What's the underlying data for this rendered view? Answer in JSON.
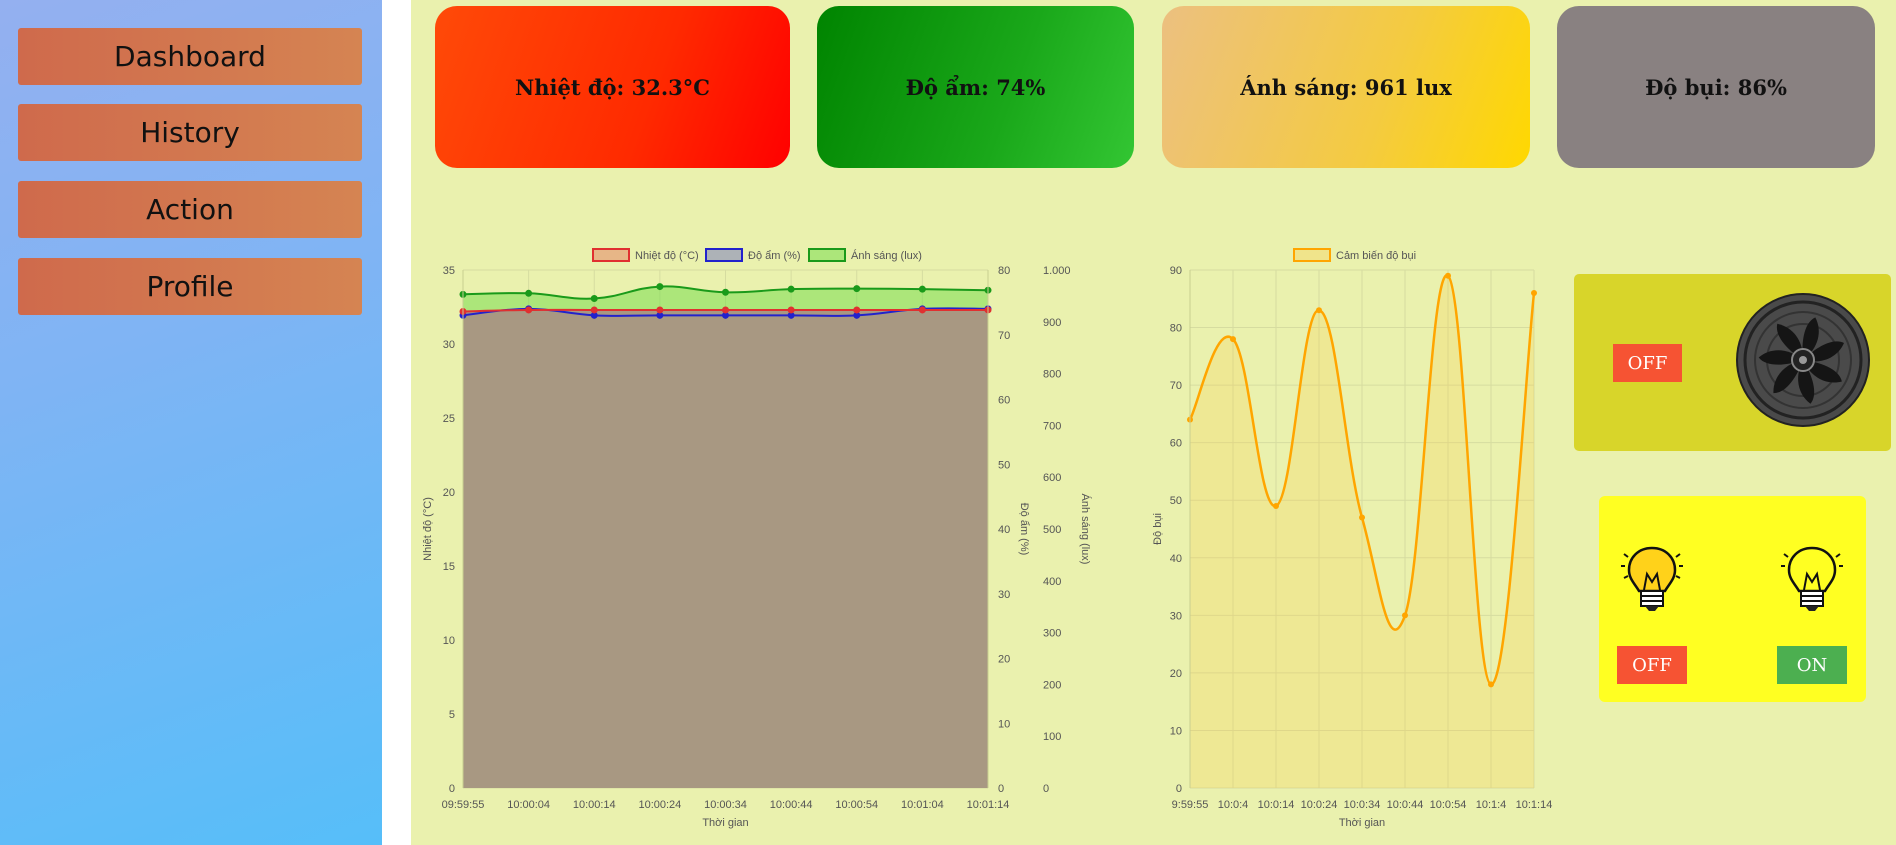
{
  "sidebar": {
    "items": [
      {
        "label": "Dashboard"
      },
      {
        "label": "History"
      },
      {
        "label": "Action"
      },
      {
        "label": "Profile"
      }
    ]
  },
  "cards": {
    "temperature": "Nhiệt độ: 32.3°C",
    "humidity": "Độ ẩm: 74%",
    "light": "Ánh sáng: 961 lux",
    "dust": "Độ bụi: 86%"
  },
  "colors": {
    "temperature_line": "#e03030",
    "humidity_line": "#2222cc",
    "light_line": "#1a9a1a",
    "dust_line": "#ffa500",
    "fill_brown": "#a89882",
    "btn_off": "#f65333",
    "btn_on": "#4caf50"
  },
  "controls": {
    "fan_icon": "fan-icon",
    "fan_button": "OFF",
    "bulb_icon": "light-bulb-icon",
    "light_left_button": "OFF",
    "light_right_button": "ON"
  },
  "chart_data": [
    {
      "type": "line",
      "categories": [
        "09:59:55",
        "10:00:04",
        "10:00:14",
        "10:00:24",
        "10:00:34",
        "10:00:44",
        "10:00:54",
        "10:01:04",
        "10:01:14"
      ],
      "series": [
        {
          "name": "Nhiệt độ (°C)",
          "axis": "left",
          "values": [
            32.2,
            32.3,
            32.3,
            32.3,
            32.3,
            32.3,
            32.3,
            32.3,
            32.3
          ]
        },
        {
          "name": "Độ ẩm (%)",
          "axis": "right1",
          "values": [
            73,
            74,
            73,
            73,
            73,
            73,
            73,
            74,
            74
          ]
        },
        {
          "name": "Ánh sáng (lux)",
          "axis": "right2",
          "values": [
            953,
            955,
            945,
            968,
            957,
            963,
            964,
            963,
            961
          ]
        }
      ],
      "xlabel": "Thời gian",
      "ylabel_left": "Nhiệt độ (°C)",
      "ylabel_right1": "Độ ẩm (%)",
      "ylabel_right2": "Ánh sáng (lux)",
      "ylim_left": [
        0,
        35
      ],
      "ylim_right1": [
        0,
        80
      ],
      "ylim_right2": [
        0,
        1000
      ],
      "ticks_left": [
        "0",
        "5",
        "10",
        "15",
        "20",
        "25",
        "30",
        "35"
      ],
      "ticks_right1": [
        "0",
        "10",
        "20",
        "30",
        "40",
        "50",
        "60",
        "70",
        "80"
      ],
      "ticks_right2": [
        "0",
        "100",
        "200",
        "300",
        "400",
        "500",
        "600",
        "700",
        "800",
        "900",
        "1.000"
      ],
      "legend": "top",
      "grid": true
    },
    {
      "type": "area",
      "categories": [
        "9:59:55",
        "10:0:4",
        "10:0:14",
        "10:0:24",
        "10:0:34",
        "10:0:44",
        "10:0:54",
        "10:1:4",
        "10:1:14"
      ],
      "series": [
        {
          "name": "Cảm biến độ bụi",
          "values": [
            64,
            78,
            49,
            83,
            47,
            30,
            89,
            18,
            86
          ]
        }
      ],
      "xlabel": "Thời gian",
      "ylabel": "Độ bụi",
      "ylim": [
        0,
        90
      ],
      "ticks": [
        "0",
        "10",
        "20",
        "30",
        "40",
        "50",
        "60",
        "70",
        "80",
        "90"
      ],
      "legend": "top",
      "grid": true
    }
  ]
}
